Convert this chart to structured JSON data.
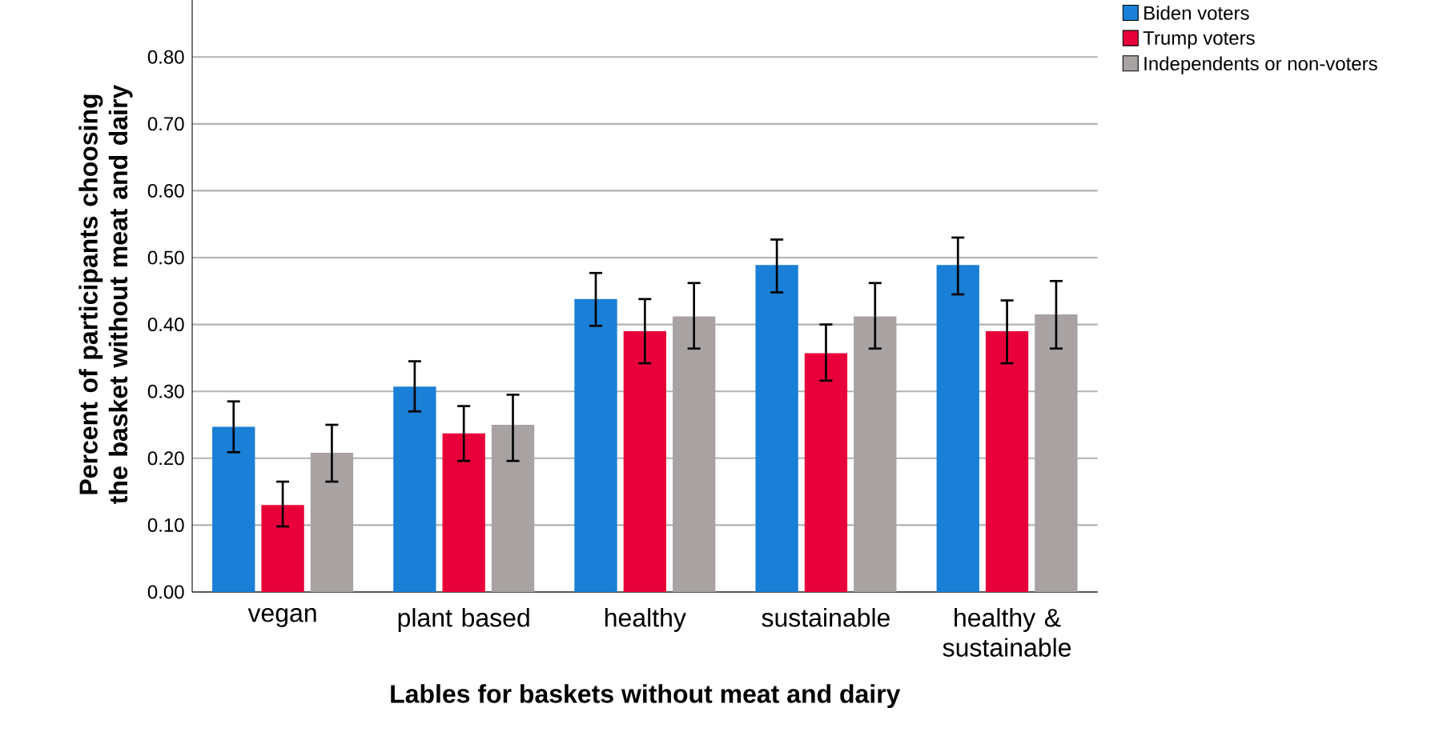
{
  "chart_data": {
    "type": "bar",
    "xlabel": "Lables for baskets without meat and dairy",
    "ylabel": "Percent of participants choosing the basket without meat and dairy",
    "categories": [
      "vegan",
      "plant based",
      "healthy",
      "sustainable",
      "healthy & sustainable"
    ],
    "series": [
      {
        "name": "Biden voters",
        "color": "#1a7fd6",
        "values": [
          0.247,
          0.307,
          0.438,
          0.489,
          0.489
        ],
        "errors": [
          [
            0.209,
            0.285
          ],
          [
            0.27,
            0.345
          ],
          [
            0.398,
            0.477
          ],
          [
            0.448,
            0.527
          ],
          [
            0.445,
            0.53
          ]
        ]
      },
      {
        "name": "Trump voters",
        "color": "#e8003a",
        "values": [
          0.13,
          0.237,
          0.39,
          0.357,
          0.39
        ],
        "errors": [
          [
            0.098,
            0.165
          ],
          [
            0.196,
            0.278
          ],
          [
            0.342,
            0.438
          ],
          [
            0.316,
            0.4
          ],
          [
            0.342,
            0.436
          ]
        ]
      },
      {
        "name": "Independents or non-voters",
        "color": "#a8a2a2",
        "values": [
          0.208,
          0.25,
          0.412,
          0.412,
          0.415
        ],
        "errors": [
          [
            0.165,
            0.25
          ],
          [
            0.196,
            0.295
          ],
          [
            0.364,
            0.462
          ],
          [
            0.364,
            0.462
          ],
          [
            0.364,
            0.465
          ]
        ]
      }
    ],
    "ylim": [
      0,
      0.89
    ],
    "yticks": [
      {
        "value": 0,
        "label": "0.00"
      },
      {
        "value": 0.1,
        "label": "0.10"
      },
      {
        "value": 0.2,
        "label": "0.20"
      },
      {
        "value": 0.3,
        "label": "0.30"
      },
      {
        "value": 0.4,
        "label": "0.40"
      },
      {
        "value": 0.5,
        "label": "0.50"
      },
      {
        "value": 0.6,
        "label": "0.60"
      },
      {
        "value": 0.7,
        "label": "0.70"
      },
      {
        "value": 0.8,
        "label": "0.80"
      }
    ],
    "grid": "y",
    "legend": "top right"
  }
}
